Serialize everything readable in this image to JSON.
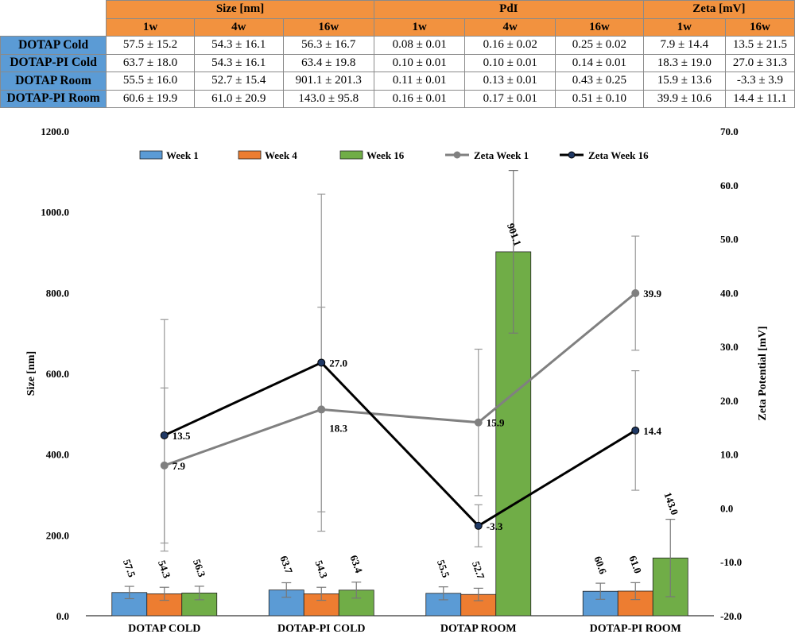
{
  "table": {
    "group_headers": [
      {
        "label": "Size [nm]",
        "span": 3
      },
      {
        "label": "PdI",
        "span": 3
      },
      {
        "label": "Zeta [mV]",
        "span": 2
      }
    ],
    "sub_headers": [
      "1w",
      "4w",
      "16w",
      "1w",
      "4w",
      "16w",
      "1w",
      "16w"
    ],
    "rows": [
      {
        "label": "DOTAP Cold",
        "cells": [
          "57.5 ± 15.2",
          "54.3 ± 16.1",
          "56.3 ± 16.7",
          "0.08 ± 0.01",
          "0.16 ± 0.02",
          "0.25 ± 0.02",
          "7.9 ± 14.4",
          "13.5 ± 21.5"
        ]
      },
      {
        "label": "DOTAP-PI Cold",
        "cells": [
          "63.7 ± 18.0",
          "54.3 ± 16.1",
          "63.4 ± 19.8",
          "0.10 ± 0.01",
          "0.10 ± 0.01",
          "0.14 ± 0.01",
          "18.3 ± 19.0",
          "27.0 ± 31.3"
        ]
      },
      {
        "label": "DOTAP Room",
        "cells": [
          "55.5 ± 16.0",
          "52.7 ± 15.4",
          "901.1 ± 201.3",
          "0.11 ± 0.01",
          "0.13 ± 0.01",
          "0.43 ± 0.25",
          "15.9 ± 13.6",
          "-3.3 ± 3.9"
        ]
      },
      {
        "label": "DOTAP-PI Room",
        "cells": [
          "60.6 ± 19.9",
          "61.0 ± 20.9",
          "143.0 ± 95.8",
          "0.16 ± 0.01",
          "0.17 ± 0.01",
          "0.51 ± 0.10",
          "39.9 ± 10.6",
          "14.4 ± 11.1"
        ]
      }
    ]
  },
  "chart_data": {
    "type": "bar",
    "categories": [
      "DOTAP COLD",
      "DOTAP-PI COLD",
      "DOTAP ROOM",
      "DOTAP-PI ROOM"
    ],
    "ylabel": "Size [nm]",
    "ylim": [
      0,
      1200
    ],
    "yticks": [
      "0.0",
      "200.0",
      "400.0",
      "600.0",
      "800.0",
      "1000.0",
      "1200.0"
    ],
    "y2label": "Zeta Potential [mV]",
    "y2lim": [
      -20,
      70
    ],
    "y2ticks": [
      "-20.0",
      "-10.0",
      "0.0",
      "10.0",
      "20.0",
      "30.0",
      "40.0",
      "50.0",
      "60.0",
      "70.0"
    ],
    "legend_position": "top",
    "grid": false,
    "bar_series": [
      {
        "name": "Week 1",
        "color": "#5b9bd5",
        "values": [
          57.5,
          63.7,
          55.5,
          60.6
        ],
        "errors": [
          15.2,
          18.0,
          16.0,
          19.9
        ],
        "labels": [
          "57.5",
          "63.7",
          "55.5",
          "60.6"
        ]
      },
      {
        "name": "Week 4",
        "color": "#ed7d31",
        "values": [
          54.3,
          54.3,
          52.7,
          61.0
        ],
        "errors": [
          16.1,
          16.1,
          15.4,
          20.9
        ],
        "labels": [
          "54.3",
          "54.3",
          "52.7",
          "61.0"
        ]
      },
      {
        "name": "Week 16",
        "color": "#70ad47",
        "values": [
          56.3,
          63.4,
          901.1,
          143.0
        ],
        "errors": [
          16.7,
          19.8,
          201.3,
          95.8
        ],
        "labels": [
          "56.3",
          "63.4",
          "901.1",
          "143.0"
        ]
      }
    ],
    "line_series": [
      {
        "name": "Zeta Week 1",
        "color": "#808080",
        "marker_fill": "#808080",
        "values": [
          7.9,
          18.3,
          15.9,
          39.9
        ],
        "errors": [
          14.4,
          19.0,
          13.6,
          10.6
        ],
        "labels": [
          "7.9",
          "18.3",
          "15.9",
          "39.9"
        ]
      },
      {
        "name": "Zeta Week 16",
        "color": "#000000",
        "marker_fill": "#1f3864",
        "values": [
          13.5,
          27.0,
          -3.3,
          14.4
        ],
        "errors": [
          21.5,
          31.3,
          3.9,
          11.1
        ],
        "labels": [
          "13.5",
          "27.0",
          "-3.3",
          "14.4"
        ]
      }
    ]
  }
}
